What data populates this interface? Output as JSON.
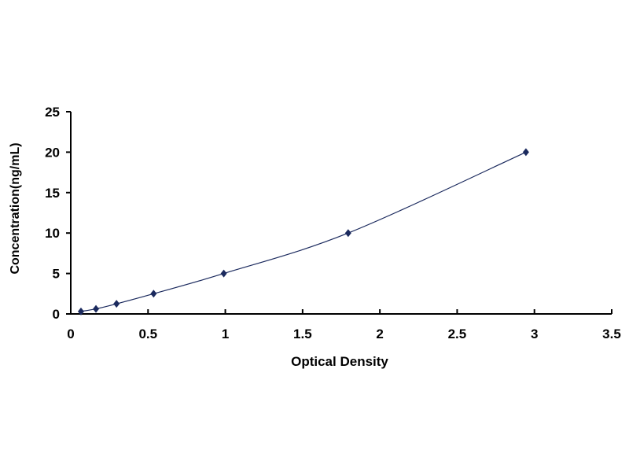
{
  "chart_data": {
    "type": "line",
    "title": "",
    "xlabel": "Optical Density",
    "ylabel": "Concentration(ng/mL)",
    "xlim": [
      0,
      3.5
    ],
    "ylim": [
      0,
      25
    ],
    "xticks": [
      "0",
      "0.5",
      "1",
      "1.5",
      "2",
      "2.5",
      "3",
      "3.5"
    ],
    "yticks": [
      "0",
      "5",
      "10",
      "15",
      "20",
      "25"
    ],
    "grid": false,
    "legend": "none",
    "marker": "diamond",
    "color": "#1b2a5e",
    "series": [
      {
        "x": [
          0.066,
          0.163,
          0.296,
          0.536,
          0.99,
          1.795,
          2.945
        ],
        "y": [
          0.31,
          0.625,
          1.25,
          2.5,
          5,
          10,
          20
        ]
      }
    ]
  }
}
